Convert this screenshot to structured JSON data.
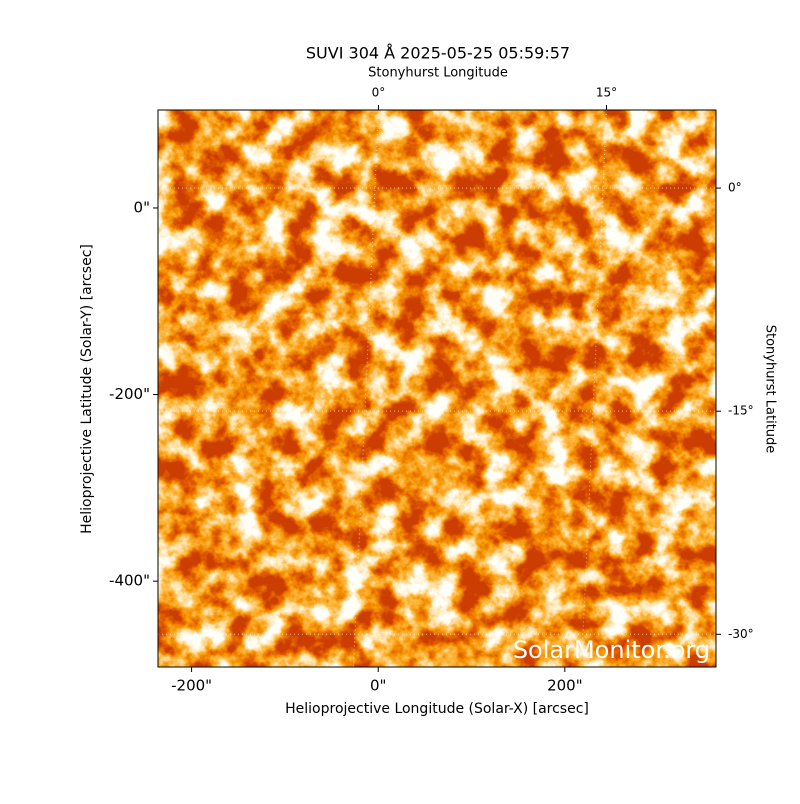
{
  "chart_data": {
    "type": "image",
    "title": "SUVI 304 Å 2025-05-25 05:59:57",
    "xlabel": "Helioprojective Longitude (Solar-X) [arcsec]",
    "ylabel": "Helioprojective Latitude (Solar-Y) [arcsec]",
    "x2label": "Stonyhurst Longitude",
    "y2label": "Stonyhurst Latitude",
    "annotation": "SolarMonitor.org",
    "xlim": [
      -236,
      362
    ],
    "ylim": [
      -492,
      105
    ],
    "xticks": [
      {
        "value": -200,
        "label": "-200\""
      },
      {
        "value": 0,
        "label": "0\""
      },
      {
        "value": 200,
        "label": "200\""
      }
    ],
    "yticks": [
      {
        "value": 0,
        "label": "0\""
      },
      {
        "value": -200,
        "label": "-200\""
      },
      {
        "value": -400,
        "label": "-400\""
      }
    ],
    "x2lim": [
      -14.5,
      22.2
    ],
    "x2ticks": [
      {
        "value": 0,
        "label": "0°"
      },
      {
        "value": 15,
        "label": "15°"
      }
    ],
    "y2lim": [
      -32.2,
      5.25
    ],
    "y2ticks": [
      {
        "value": 0,
        "label": "0°"
      },
      {
        "value": -15,
        "label": "-15°"
      },
      {
        "value": -30,
        "label": "-30°"
      }
    ],
    "grid": true
  }
}
